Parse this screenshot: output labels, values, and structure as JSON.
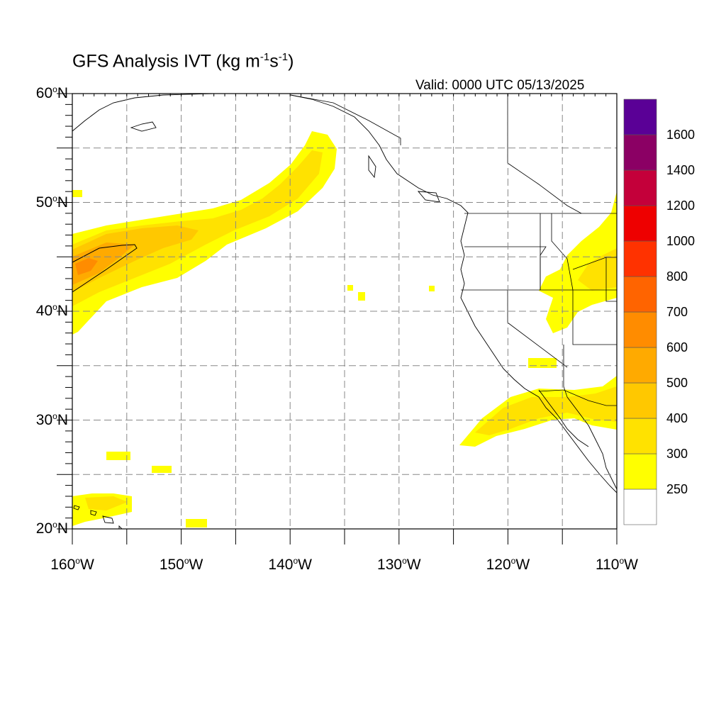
{
  "title": {
    "main": "GFS Analysis IVT (kg m",
    "exp1": "-1",
    "mid": "s",
    "exp2": "-1",
    "close": ")"
  },
  "valid": "Valid: 0000 UTC 05/13/2025",
  "map": {
    "extent": {
      "lon_min": -160,
      "lon_max": -110,
      "lat_min": 20,
      "lat_max": 60
    },
    "grid_lines": "dashed every 5 degrees",
    "lat_labels": [
      {
        "value": 60,
        "text": "60",
        "hemi": "N"
      },
      {
        "value": 50,
        "text": "50",
        "hemi": "N"
      },
      {
        "value": 40,
        "text": "40",
        "hemi": "N"
      },
      {
        "value": 30,
        "text": "30",
        "hemi": "N"
      },
      {
        "value": 20,
        "text": "20",
        "hemi": "N"
      }
    ],
    "lon_labels": [
      {
        "value": -160,
        "text": "160",
        "hemi": "W"
      },
      {
        "value": -150,
        "text": "150",
        "hemi": "W"
      },
      {
        "value": -140,
        "text": "140",
        "hemi": "W"
      },
      {
        "value": -130,
        "text": "130",
        "hemi": "W"
      },
      {
        "value": -120,
        "text": "120",
        "hemi": "W"
      },
      {
        "value": -110,
        "text": "110",
        "hemi": "W"
      }
    ]
  },
  "colorbar": {
    "colors": [
      "#ffffff",
      "#ffff00",
      "#ffe200",
      "#ffc800",
      "#ffaa00",
      "#ff8c00",
      "#ff6400",
      "#ff3200",
      "#ee0000",
      "#c4003a",
      "#8b0064",
      "#5a0096"
    ],
    "labels": [
      "250",
      "300",
      "400",
      "500",
      "600",
      "700",
      "800",
      "1000",
      "1200",
      "1400",
      "1600"
    ]
  },
  "chart_data": {
    "type": "heatmap",
    "title": "GFS Analysis IVT (kg m-1s-1)",
    "valid_time": "0000 UTC 05/13/2025",
    "xlim": [
      -160,
      -110
    ],
    "ylim": [
      20,
      60
    ],
    "levels": [
      250,
      300,
      400,
      500,
      600,
      700,
      800,
      1000,
      1200,
      1400,
      1600
    ],
    "features": [
      {
        "desc": "atmospheric river band",
        "path_lonlat": [
          [
            -160,
            43
          ],
          [
            -153,
            46
          ],
          [
            -145,
            49
          ],
          [
            -140,
            52
          ],
          [
            -137,
            56
          ]
        ],
        "peak_level": 600,
        "peak_at": [
          -158,
          44
        ]
      },
      {
        "desc": "subtropical plume",
        "path_lonlat": [
          [
            -124,
            28
          ],
          [
            -120,
            30
          ],
          [
            -116,
            32
          ],
          [
            -110,
            34
          ]
        ],
        "peak_level": 400
      },
      {
        "desc": "interior moisture",
        "path_lonlat": [
          [
            -117,
            36
          ],
          [
            -114,
            41
          ],
          [
            -111,
            47
          ],
          [
            -110,
            50
          ]
        ],
        "peak_level": 300
      }
    ]
  }
}
